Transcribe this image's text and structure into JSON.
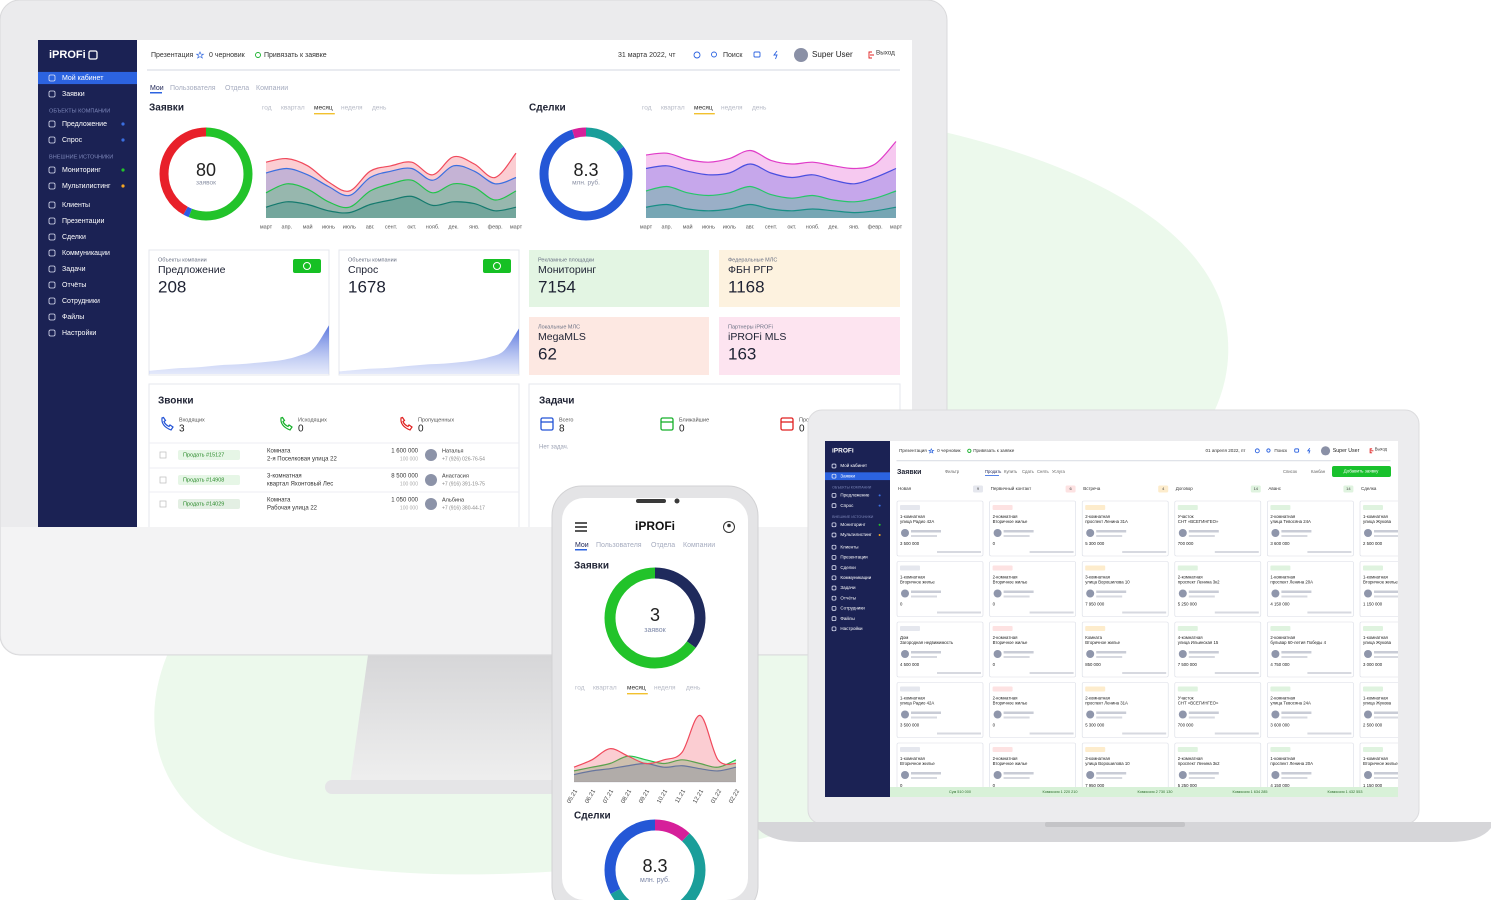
{
  "logo": "iPROFi",
  "header": {
    "presentation": "Презентация",
    "draft": "0 черновик",
    "link": "Привязать к заявке",
    "date": "31 марта 2022, чт",
    "search": "Поиск",
    "user": "Super User",
    "exit": "Выход"
  },
  "sidebar": [
    {
      "items": [
        "Мой кабинет",
        "Заявки"
      ]
    },
    {
      "heading": "ОБЪЕКТЫ КОМПАНИИ",
      "items": [
        "Предложение",
        "Спрос"
      ]
    },
    {
      "heading": "ВНЕШНИЕ ИСТОЧНИКИ",
      "items": [
        "Мониторинг",
        "Мультилистинг"
      ]
    },
    {
      "items": [
        "Клиенты",
        "Презентации",
        "Сделки",
        "Коммуникации",
        "Задачи",
        "Отчёты",
        "Сотрудники",
        "Файлы",
        "Настройки"
      ]
    }
  ],
  "tabs": [
    "Мои",
    "Пользователя",
    "Отдела",
    "Компании"
  ],
  "periods": [
    "год",
    "квартал",
    "месяц",
    "неделя",
    "день"
  ],
  "months": [
    "март",
    "апр.",
    "май",
    "июнь",
    "июль",
    "авг.",
    "сент.",
    "окт.",
    "нояб.",
    "дек.",
    "янв.",
    "февр.",
    "март"
  ],
  "requests": {
    "title": "Заявки",
    "value": 80,
    "unit": "заявок",
    "donut": {
      "values": [
        56,
        2,
        42
      ],
      "colors": [
        "#22c32a",
        "#2b5ce6",
        "#e8202a"
      ]
    },
    "series": [
      {
        "color": "#f04a5c",
        "values": [
          62,
          66,
          58,
          40,
          30,
          52,
          58,
          62,
          48,
          68,
          60,
          45,
          72
        ]
      },
      {
        "color": "#3b6fe0",
        "values": [
          50,
          55,
          48,
          35,
          25,
          45,
          52,
          55,
          42,
          58,
          52,
          38,
          45
        ]
      },
      {
        "color": "#22c34a",
        "values": [
          28,
          38,
          32,
          18,
          12,
          30,
          38,
          42,
          28,
          38,
          34,
          20,
          30
        ]
      },
      {
        "color": "#157a6e",
        "values": [
          12,
          18,
          15,
          8,
          6,
          15,
          20,
          24,
          14,
          18,
          16,
          8,
          12
        ]
      }
    ]
  },
  "deals": {
    "title": "Сделки",
    "value": 8.3,
    "unit": "млн. руб.",
    "donut": {
      "values": [
        15,
        80,
        5
      ],
      "colors": [
        "#1a9e9a",
        "#2457d6",
        "#d6209a"
      ]
    },
    "series": [
      {
        "color": "#e03cc8",
        "values": [
          70,
          72,
          65,
          62,
          66,
          75,
          64,
          60,
          62,
          58,
          55,
          60,
          85
        ]
      },
      {
        "color": "#4a4fe0",
        "values": [
          55,
          58,
          52,
          48,
          50,
          60,
          50,
          45,
          48,
          42,
          38,
          45,
          55
        ]
      },
      {
        "color": "#27c66a",
        "values": [
          30,
          35,
          28,
          25,
          28,
          35,
          26,
          22,
          25,
          20,
          18,
          22,
          30
        ]
      },
      {
        "color": "#1a8f86",
        "values": [
          12,
          15,
          10,
          8,
          10,
          15,
          10,
          8,
          10,
          8,
          6,
          8,
          12
        ]
      }
    ]
  },
  "cards": [
    {
      "caption": "Объекты компании",
      "title": "Предложение",
      "value": 208,
      "spark": [
        5,
        7,
        9,
        10,
        12,
        14,
        15,
        17,
        19,
        22,
        28,
        40,
        75
      ]
    },
    {
      "caption": "Объекты компании",
      "title": "Спрос",
      "value": 1678,
      "spark": [
        4,
        6,
        8,
        9,
        11,
        13,
        15,
        16,
        18,
        21,
        26,
        36,
        70
      ]
    },
    {
      "caption": "Рекламные площадки",
      "title": "Мониторинг",
      "value": 7154,
      "color": "#e3f5e3"
    },
    {
      "caption": "Федеральные МЛС",
      "title": "ФБН РГР",
      "value": 1168,
      "color": "#fdf2df"
    },
    {
      "caption": "Локальные МЛС",
      "title": "MegaMLS",
      "value": 62,
      "color": "#fde8e2"
    },
    {
      "caption": "Партнеры iPROFi",
      "title": "iPROFi MLS",
      "value": 163,
      "color": "#fde4f0"
    }
  ],
  "calls": {
    "title": "Звонки",
    "stats": [
      {
        "label": "Входящих",
        "value": 3
      },
      {
        "label": "Исходящих",
        "value": 0
      },
      {
        "label": "Пропущенных",
        "value": 0
      }
    ],
    "rows": [
      {
        "tag": "Продать #15127",
        "title": "Комната",
        "address": "2-я Поселковая улица 22",
        "price": "1 600 000",
        "sub": "100 000",
        "name": "Наталья",
        "phone": "+7 (926) 026-76-54"
      },
      {
        "tag": "Продать #14908",
        "title": "3-комнатная",
        "address": "квартал Яхонтовый Лес",
        "price": "8 500 000",
        "sub": "100 000",
        "name": "Анастасия",
        "phone": "+7 (916) 391-19-75"
      },
      {
        "tag": "Продать #14029",
        "title": "Комната",
        "address": "Рабочая улица 22",
        "price": "1 050 000",
        "sub": "100 000",
        "name": "Альбина",
        "phone": "+7 (916) 380-44-17"
      }
    ]
  },
  "tasks": {
    "title": "Задачи",
    "stats": [
      {
        "label": "Всего",
        "value": 8
      },
      {
        "label": "Ближайшие",
        "value": 0
      },
      {
        "label": "Просроченные",
        "value": 0
      }
    ],
    "empty": "Нет задач."
  },
  "laptop": {
    "date": "01 апреля 2022, пт",
    "title": "Заявки",
    "filter": "Фильтр",
    "filters": [
      "Продать",
      "Купить",
      "Сдать",
      "Снять",
      "Услуга"
    ],
    "views": [
      "Список",
      "Канбан"
    ],
    "add": "Добавить заявку",
    "columns": [
      {
        "name": "Новая",
        "count": 9,
        "color": "#e5e7ee",
        "cards": [
          [
            "1-комнатная",
            "улица Радио 42А",
            "3 500 000"
          ],
          [
            "1-комнатная",
            "Вторичное жилье",
            "0"
          ],
          [
            "Дом",
            "Загородная недвижимость",
            "4 500 000"
          ],
          [
            "1-комнатная",
            "улица Радио 42А",
            "3 500 000"
          ],
          [
            "1-комнатная",
            "Вторичное жилье",
            "0"
          ]
        ]
      },
      {
        "name": "Первичный контакт",
        "count": 6,
        "color": "#fde2e2",
        "cards": [
          [
            "2-комнатная",
            "Вторичное жилье",
            "0"
          ],
          [
            "2-комнатная",
            "Вторичное жилье",
            "0"
          ],
          [
            "2-комнатная",
            "Вторичное жилье",
            "0"
          ],
          [
            "2-комнатная",
            "Вторичное жилье",
            "0"
          ],
          [
            "2-комнатная",
            "Вторичное жилье",
            "0"
          ]
        ]
      },
      {
        "name": "Встреча",
        "count": 4,
        "color": "#fdeccc",
        "cards": [
          [
            "2-комнатная",
            "проспект Ленина 31А",
            "5 300 000"
          ],
          [
            "3-комнатная",
            "улица Ворошилова 10",
            "7 950 000"
          ],
          [
            "Комната",
            "Вторичное жилье",
            "850 000"
          ],
          [
            "2-комнатная",
            "проспект Ленина 31А",
            "5 300 000"
          ],
          [
            "3-комнатная",
            "улица Ворошилова 10",
            "7 950 000"
          ]
        ]
      },
      {
        "name": "Договор",
        "count": 14,
        "color": "#dff3df",
        "cards": [
          [
            "Участок",
            "СНТ «ВСЕГИНГЕО»",
            "700 000"
          ],
          [
            "2-комнатная",
            "проспект Ленина 3к2",
            "5 250 000"
          ],
          [
            "4-комнатная",
            "улица Ильинская 15",
            "7 500 000"
          ],
          [
            "Участок",
            "СНТ «ВСЕГИНГЕО»",
            "700 000"
          ],
          [
            "2-комнатная",
            "проспект Ленина 3к2",
            "5 250 000"
          ]
        ]
      },
      {
        "name": "Аванс",
        "count": 14,
        "color": "#dff3df",
        "cards": [
          [
            "2-комнатная",
            "улица Тевосяна 24А",
            "3 600 000"
          ],
          [
            "1-комнатная",
            "проспект Ленина 20А",
            "4 150 000"
          ],
          [
            "2-комнатная",
            "бульвар 60-летия Победы 4",
            "4 750 000"
          ],
          [
            "2-комнатная",
            "улица Тевосяна 24А",
            "3 600 000"
          ],
          [
            "1-комнатная",
            "проспект Ленина 20А",
            "4 150 000"
          ]
        ]
      },
      {
        "name": "Сделка",
        "count": 12,
        "color": "#dff3df",
        "cards": [
          [
            "1-комнатная",
            "улица Жукова",
            "2 500 000"
          ],
          [
            "1-комнатная",
            "Вторичное жилье",
            "1 150 000"
          ],
          [
            "1-комнатная",
            "улица Жукова",
            "3 000 000"
          ],
          [
            "1-комнатная",
            "улица Жукова",
            "2 500 000"
          ],
          [
            "1-комнатная",
            "Вторичное жилье",
            "1 150 000"
          ]
        ]
      }
    ],
    "footer": [
      "Сум 510 000",
      "Комиссия 1 220 210",
      "Комиссия 2 730 130",
      "Комиссия 1 634 285",
      "Комиссия 1 432 553"
    ]
  },
  "phone": {
    "value": 3,
    "donut": {
      "values": [
        35,
        65
      ],
      "colors": [
        "#1f2a5c",
        "#22c32a"
      ]
    },
    "x": [
      "05.21",
      "06.21",
      "07.21",
      "08.21",
      "09.21",
      "10.21",
      "11.21",
      "12.21",
      "01.22",
      "02.22"
    ],
    "series": [
      {
        "color": "#3b6fe0",
        "values": [
          10,
          15,
          18,
          22,
          25,
          20,
          22,
          18,
          15,
          20
        ]
      },
      {
        "color": "#22c34a",
        "values": [
          15,
          20,
          25,
          35,
          30,
          25,
          30,
          25,
          20,
          30
        ]
      },
      {
        "color": "#f04a5c",
        "values": [
          20,
          30,
          45,
          35,
          25,
          30,
          40,
          90,
          30,
          25
        ]
      }
    ],
    "deals_donut": {
      "values": [
        12,
        55,
        33
      ],
      "colors": [
        "#d6209a",
        "#1a9e9a",
        "#2457d6"
      ]
    }
  }
}
